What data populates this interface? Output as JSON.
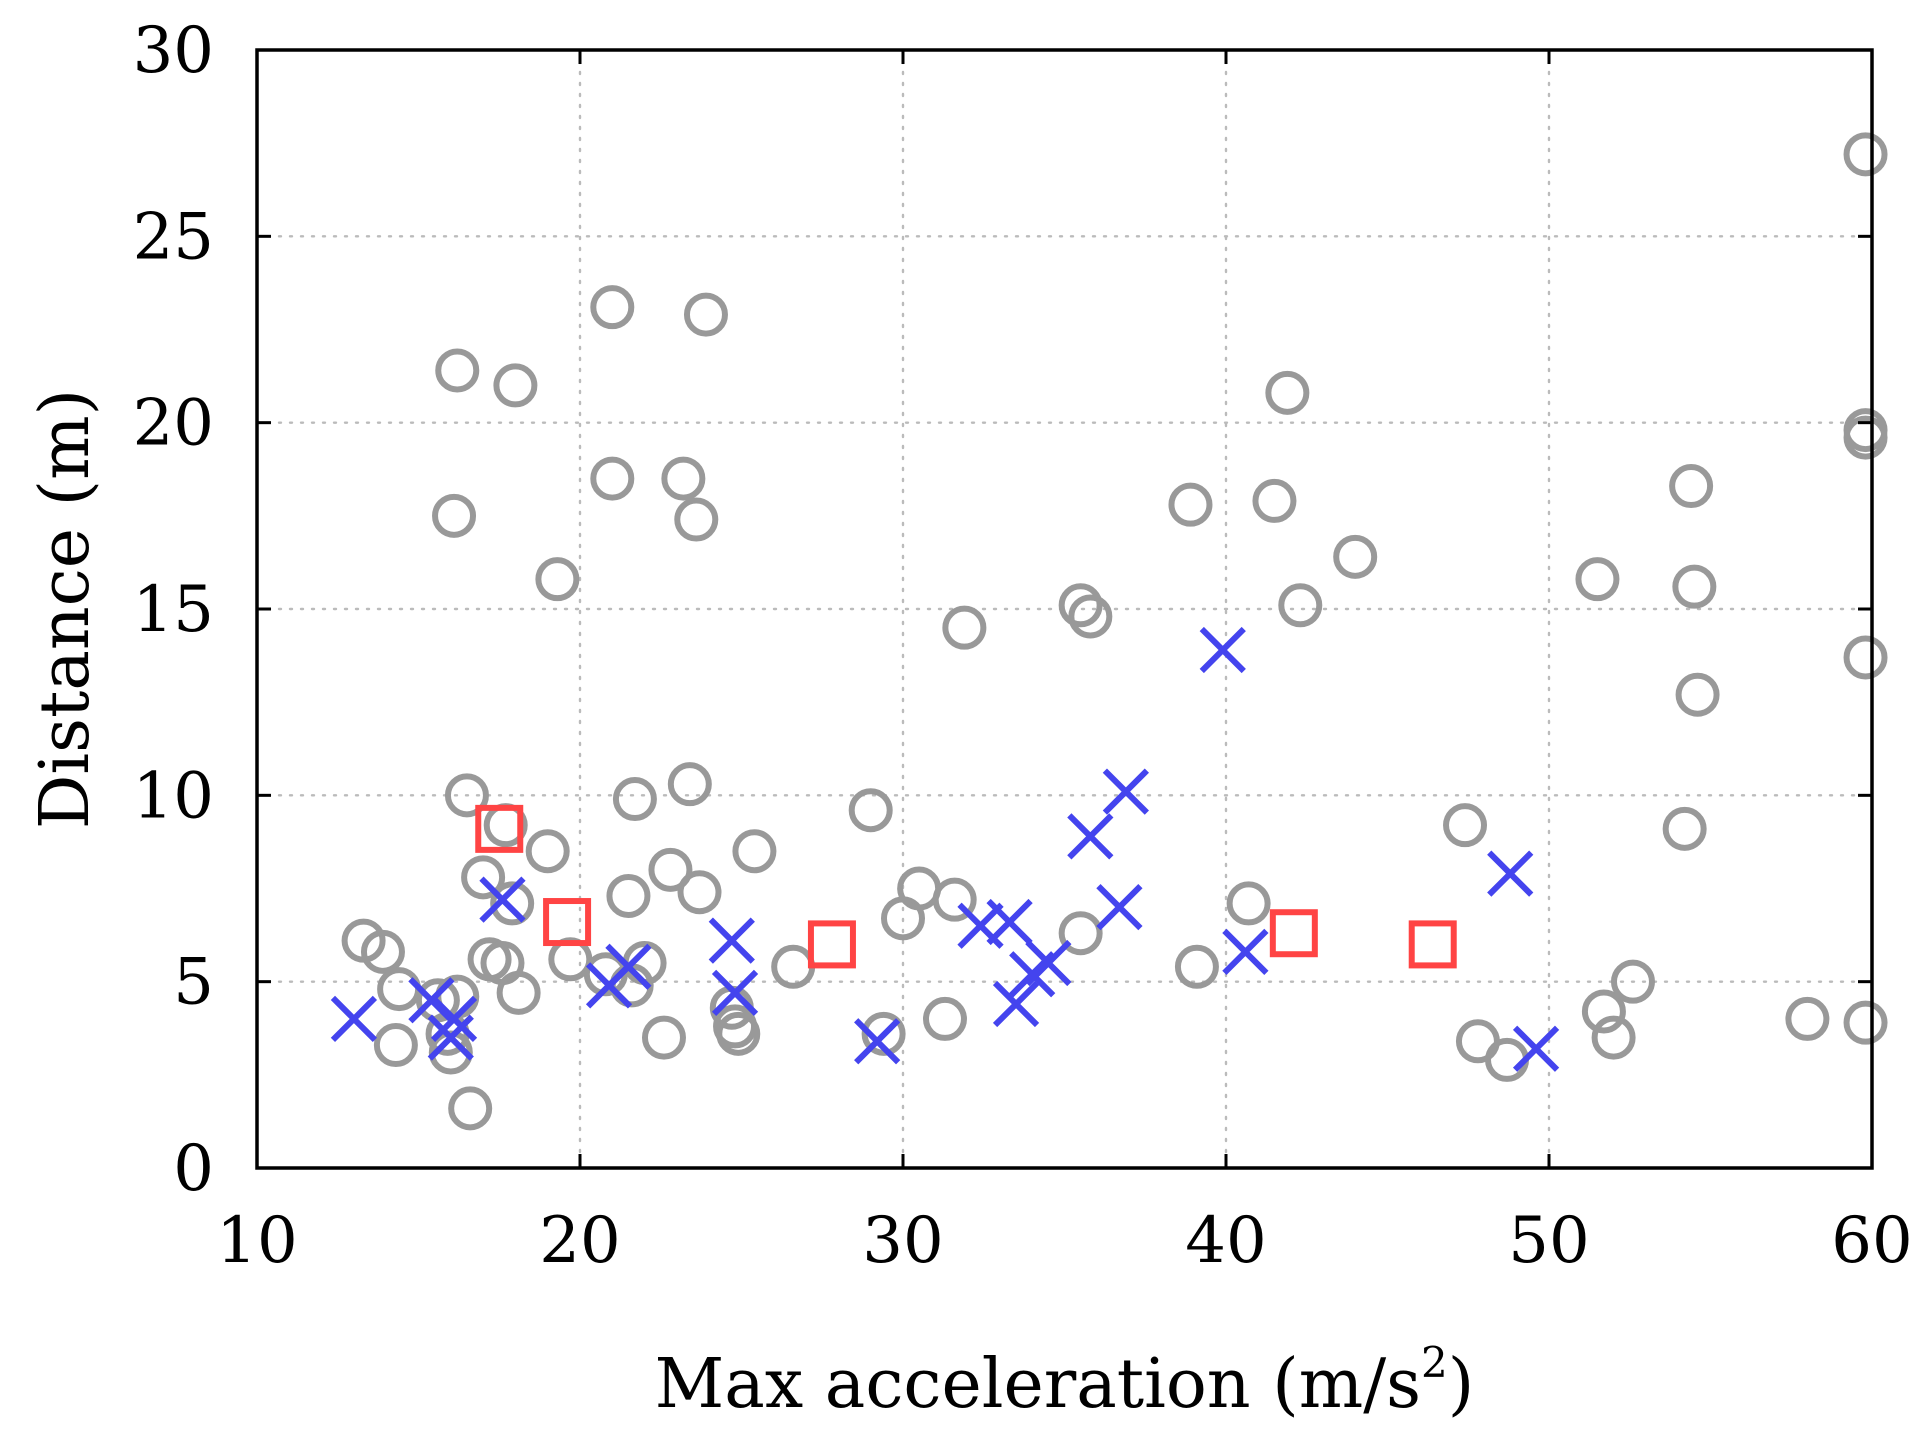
{
  "chart_data": {
    "type": "scatter",
    "title": "",
    "xlabel": "Max acceleration (m/s",
    "xlabel_superscript": "2",
    "xlabel_suffix": ")",
    "ylabel": "Distance (m)",
    "xlim": [
      10,
      60
    ],
    "ylim": [
      0,
      30
    ],
    "xticks": [
      10,
      20,
      30,
      40,
      50,
      60
    ],
    "yticks": [
      0,
      5,
      10,
      15,
      20,
      25,
      30
    ],
    "xtick_labels": [
      "10",
      "20",
      "30",
      "40",
      "50",
      "60"
    ],
    "ytick_labels": [
      "0",
      "5",
      "10",
      "15",
      "20",
      "25",
      "30"
    ],
    "grid": true,
    "legend": null,
    "series": [
      {
        "name": "gray circles",
        "marker": "circle",
        "color": "#999999",
        "points": [
          [
            13.3,
            6.1
          ],
          [
            13.9,
            5.8
          ],
          [
            14.4,
            4.8
          ],
          [
            14.3,
            3.3
          ],
          [
            15.6,
            4.5
          ],
          [
            15.9,
            3.6
          ],
          [
            16.0,
            3.1
          ],
          [
            16.2,
            4.6
          ],
          [
            16.2,
            21.4
          ],
          [
            16.1,
            17.5
          ],
          [
            16.5,
            10.0
          ],
          [
            16.6,
            1.6
          ],
          [
            17.0,
            7.8
          ],
          [
            17.2,
            5.6
          ],
          [
            17.6,
            5.5
          ],
          [
            17.7,
            9.2
          ],
          [
            17.9,
            7.1
          ],
          [
            18.1,
            4.7
          ],
          [
            18.0,
            21.0
          ],
          [
            19.0,
            8.5
          ],
          [
            19.3,
            15.8
          ],
          [
            19.7,
            5.6
          ],
          [
            20.8,
            5.2
          ],
          [
            21.0,
            23.1
          ],
          [
            21.0,
            18.5
          ],
          [
            21.5,
            7.3
          ],
          [
            21.6,
            4.9
          ],
          [
            21.7,
            9.9
          ],
          [
            22.0,
            5.5
          ],
          [
            22.6,
            3.5
          ],
          [
            22.8,
            8.0
          ],
          [
            23.2,
            18.5
          ],
          [
            23.4,
            10.3
          ],
          [
            23.6,
            17.4
          ],
          [
            23.7,
            7.4
          ],
          [
            23.9,
            22.9
          ],
          [
            24.7,
            4.3
          ],
          [
            24.8,
            3.8
          ],
          [
            24.9,
            3.6
          ],
          [
            25.4,
            8.5
          ],
          [
            26.6,
            5.4
          ],
          [
            29.0,
            9.6
          ],
          [
            29.4,
            3.6
          ],
          [
            30.0,
            6.7
          ],
          [
            30.5,
            7.5
          ],
          [
            31.3,
            4.0
          ],
          [
            31.6,
            7.2
          ],
          [
            31.9,
            14.5
          ],
          [
            35.5,
            6.3
          ],
          [
            35.5,
            15.1
          ],
          [
            35.8,
            14.8
          ],
          [
            38.9,
            17.8
          ],
          [
            39.1,
            5.4
          ],
          [
            40.7,
            7.1
          ],
          [
            41.5,
            17.9
          ],
          [
            41.9,
            20.8
          ],
          [
            42.3,
            15.1
          ],
          [
            44.0,
            16.4
          ],
          [
            47.4,
            9.2
          ],
          [
            47.8,
            3.4
          ],
          [
            48.7,
            2.9
          ],
          [
            51.5,
            15.8
          ],
          [
            51.7,
            4.2
          ],
          [
            52.0,
            3.5
          ],
          [
            52.6,
            5.0
          ],
          [
            54.2,
            9.1
          ],
          [
            54.4,
            18.3
          ],
          [
            54.5,
            15.6
          ],
          [
            54.6,
            12.7
          ],
          [
            58.0,
            4.0
          ],
          [
            59.8,
            27.2
          ],
          [
            59.8,
            19.8
          ],
          [
            59.8,
            19.6
          ],
          [
            59.8,
            13.7
          ],
          [
            59.8,
            3.9
          ]
        ]
      },
      {
        "name": "blue crosses",
        "marker": "x",
        "color": "#4444ee",
        "points": [
          [
            13.0,
            4.0
          ],
          [
            15.4,
            4.5
          ],
          [
            16.1,
            4.0
          ],
          [
            16.0,
            3.5
          ],
          [
            17.6,
            7.2
          ],
          [
            20.9,
            4.9
          ],
          [
            21.5,
            5.4
          ],
          [
            24.7,
            6.1
          ],
          [
            24.8,
            4.7
          ],
          [
            29.2,
            3.4
          ],
          [
            32.4,
            6.5
          ],
          [
            33.3,
            6.6
          ],
          [
            33.5,
            4.4
          ],
          [
            34.0,
            5.2
          ],
          [
            34.5,
            5.5
          ],
          [
            35.8,
            8.9
          ],
          [
            36.7,
            7.0
          ],
          [
            36.9,
            10.1
          ],
          [
            39.9,
            13.9
          ],
          [
            40.6,
            5.8
          ],
          [
            48.8,
            7.9
          ],
          [
            49.6,
            3.2
          ]
        ]
      },
      {
        "name": "red squares",
        "marker": "square",
        "color": "#ff4444",
        "points": [
          [
            17.5,
            9.1
          ],
          [
            19.6,
            6.6
          ],
          [
            27.8,
            6.0
          ],
          [
            42.1,
            6.3
          ],
          [
            46.4,
            6.0
          ]
        ]
      }
    ]
  }
}
